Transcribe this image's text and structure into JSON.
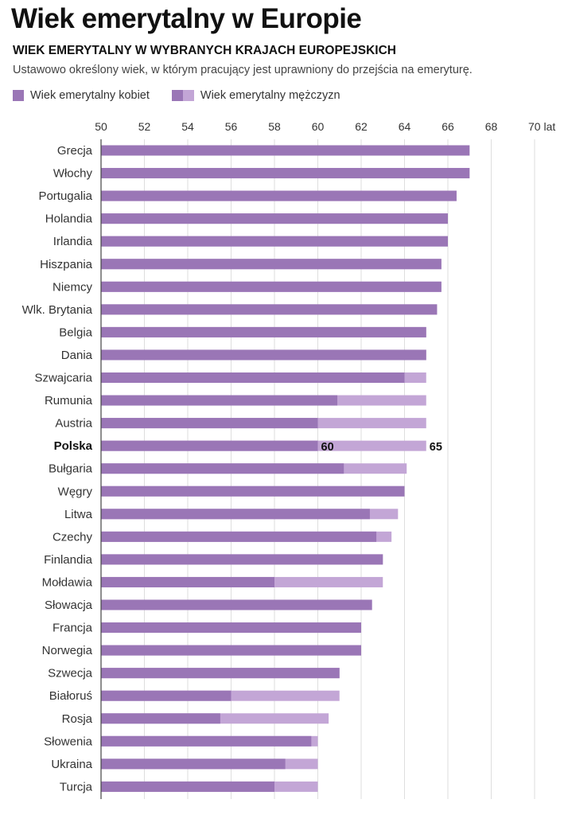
{
  "header": {
    "title": "Wiek emerytalny w Europie",
    "subtitle": "WIEK EMERYTALNY W WYBRANYCH KRAJACH EUROPEJSKICH",
    "description": "Ustawowo określony wiek, w którym pracujący jest uprawniony do przejścia na emeryturę."
  },
  "legend": {
    "women_label": "Wiek emerytalny kobiet",
    "men_label": "Wiek emerytalny mężczyzn"
  },
  "colors": {
    "women": "#9a76b6",
    "men": "#c3a6d6",
    "grid": "#dedede",
    "axis": "#444444"
  },
  "chart_data": {
    "type": "bar",
    "orientation": "horizontal",
    "stacked_overlay": true,
    "xlim": [
      50,
      70
    ],
    "x_ticks": [
      50,
      52,
      54,
      56,
      58,
      60,
      62,
      64,
      66,
      68,
      70
    ],
    "x_tick_labels": [
      "50",
      "52",
      "54",
      "56",
      "58",
      "60",
      "62",
      "64",
      "66",
      "68",
      "70 lat"
    ],
    "grid": true,
    "highlight": "Polska",
    "categories": [
      "Grecja",
      "Włochy",
      "Portugalia",
      "Holandia",
      "Irlandia",
      "Hiszpania",
      "Niemcy",
      "Wlk. Brytania",
      "Belgia",
      "Dania",
      "Szwajcaria",
      "Rumunia",
      "Austria",
      "Polska",
      "Bułgaria",
      "Węgry",
      "Litwa",
      "Czechy",
      "Finlandia",
      "Mołdawia",
      "Słowacja",
      "Francja",
      "Norwegia",
      "Szwecja",
      "Białoruś",
      "Rosja",
      "Słowenia",
      "Ukraina",
      "Turcja"
    ],
    "series": [
      {
        "name": "Wiek emerytalny kobiet",
        "values": [
          67,
          67,
          66.4,
          66,
          66,
          65.7,
          65.7,
          65.5,
          65,
          65,
          64,
          60.9,
          60,
          60,
          61.2,
          64,
          62.4,
          62.7,
          63,
          58,
          62.5,
          62,
          62,
          61,
          56,
          55.5,
          59.7,
          58.5,
          58
        ]
      },
      {
        "name": "Wiek emerytalny mężczyzn",
        "values": [
          67,
          67,
          66.4,
          66,
          66,
          65.7,
          65.7,
          65.5,
          65,
          65,
          65,
          65,
          65,
          65,
          64.1,
          64,
          63.7,
          63.4,
          63,
          63,
          62.5,
          62,
          62,
          61,
          61,
          60.5,
          60,
          60,
          60
        ]
      }
    ],
    "data_labels": {
      "Polska": [
        "60",
        "65"
      ]
    }
  }
}
